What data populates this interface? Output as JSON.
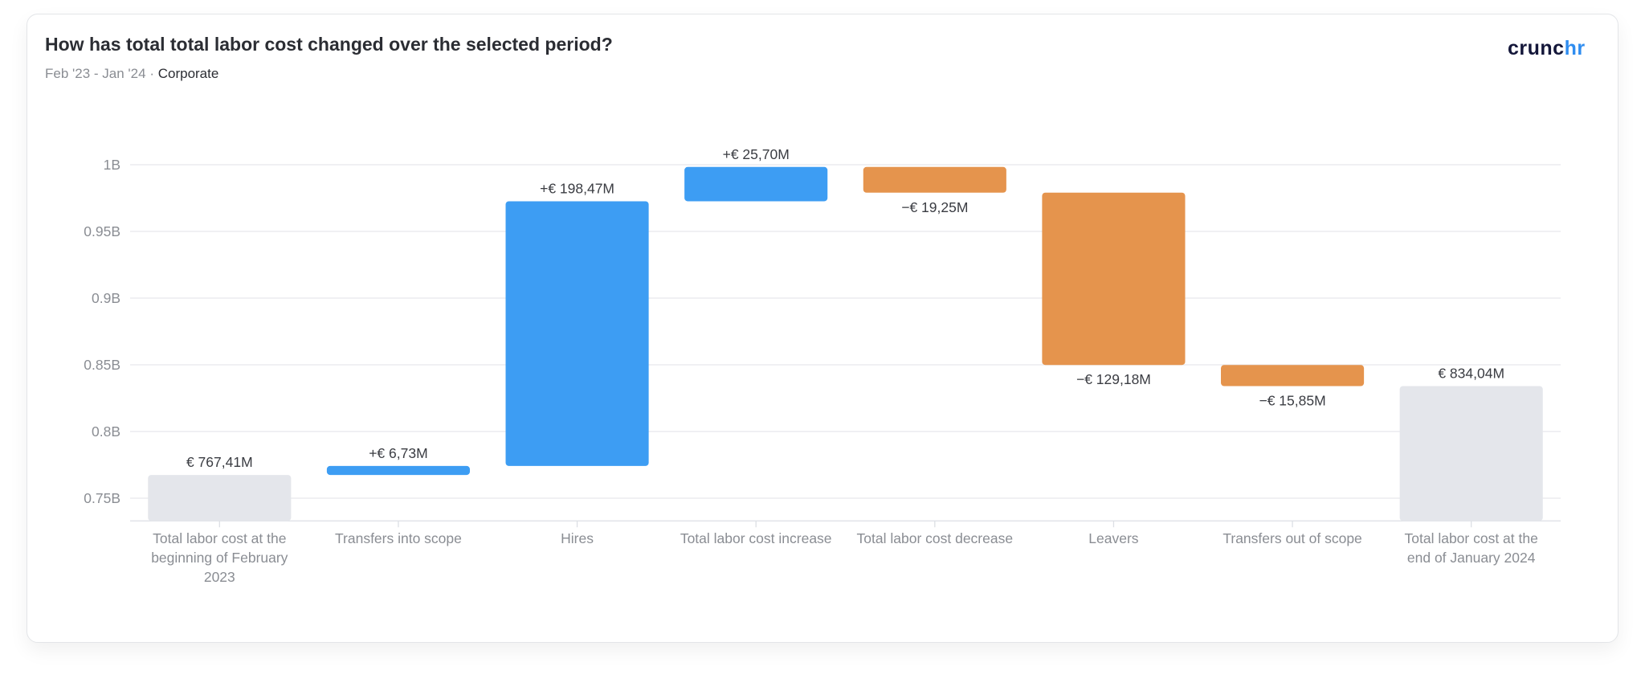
{
  "header": {
    "title": "How has total total labor cost changed over the selected period?",
    "period": "Feb '23 - Jan '24",
    "separator": "·",
    "scope": "Corporate"
  },
  "logo": {
    "part1": "crunc",
    "part2": "hr"
  },
  "colors": {
    "increase": "#3d9df3",
    "decrease": "#e5944d",
    "total": "#e4e6eb",
    "grid": "#e6e8ec"
  },
  "chart_data": {
    "type": "waterfall",
    "title": "How has total total labor cost changed over the selected period?",
    "ylim": [
      0.733,
      1.0
    ],
    "yticks": [
      0.75,
      0.8,
      0.85,
      0.9,
      0.95,
      1.0
    ],
    "ytick_labels": [
      "0.75B",
      "0.8B",
      "0.85B",
      "0.9B",
      "0.95B",
      "1B"
    ],
    "grid": true,
    "unit": "million EUR",
    "categories": [
      "Total labor cost at the beginning of February 2023",
      "Transfers into scope",
      "Hires",
      "Total labor cost increase",
      "Total labor cost decrease",
      "Leavers",
      "Transfers out of scope",
      "Total labor cost at the end of January 2024"
    ],
    "kinds": [
      "total",
      "increase",
      "increase",
      "increase",
      "decrease",
      "decrease",
      "decrease",
      "total"
    ],
    "values": [
      767.41,
      6.73,
      198.47,
      25.7,
      -19.25,
      -129.18,
      -15.85,
      834.04
    ],
    "data_labels": [
      "€ 767,41M",
      "+€ 6,73M",
      "+€ 198,47M",
      "+€ 25,70M",
      "−€ 19,25M",
      "−€ 129,18M",
      "−€ 15,85M",
      "€ 834,04M"
    ]
  }
}
